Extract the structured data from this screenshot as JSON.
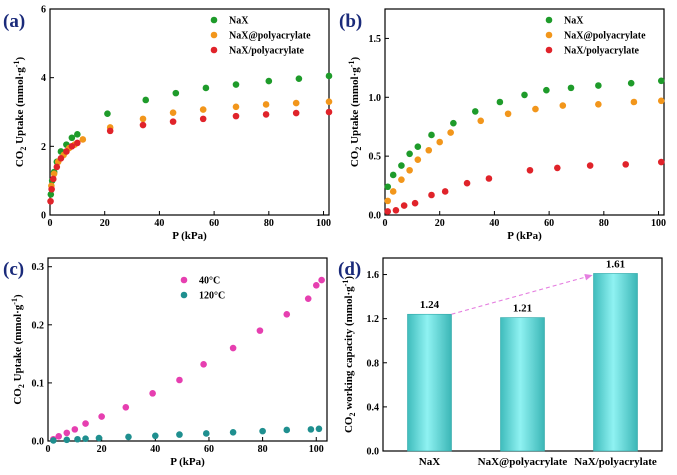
{
  "colors": {
    "green": "#1e9b2a",
    "orange": "#f2961b",
    "red": "#e0232a",
    "magenta": "#e63fb0",
    "teal": "#1f8f8f",
    "bar": "#62dcdc",
    "arrow": "#e57fe0"
  },
  "chart_data": [
    {
      "type": "scatter",
      "panel_label": "(a)",
      "xlabel": "P (kPa)",
      "ylabel_pre": "CO",
      "ylabel_sub": "2",
      "ylabel_post": " Uptake (mmol·g",
      "ylabel_sup": "-1",
      "ylabel_end": ")",
      "xlim": [
        0,
        102
      ],
      "ylim": [
        0,
        6
      ],
      "xticks": [
        0,
        20,
        40,
        60,
        80,
        100
      ],
      "yticks": [
        0,
        2,
        4,
        6
      ],
      "legend_position": "top-right",
      "series": [
        {
          "name": "NaX",
          "color": "#1e9b2a",
          "points": [
            [
              0.3,
              0.6
            ],
            [
              0.8,
              1.0
            ],
            [
              1.5,
              1.25
            ],
            [
              2.5,
              1.55
            ],
            [
              4,
              1.85
            ],
            [
              6,
              2.05
            ],
            [
              8,
              2.25
            ],
            [
              10,
              2.35
            ],
            [
              21,
              2.95
            ],
            [
              35,
              3.35
            ],
            [
              46,
              3.55
            ],
            [
              57,
              3.7
            ],
            [
              68,
              3.8
            ],
            [
              80,
              3.9
            ],
            [
              91,
              3.97
            ],
            [
              102,
              4.05
            ]
          ]
        },
        {
          "name": "NaX@polyacrylate",
          "color": "#f2961b",
          "points": [
            [
              0.5,
              0.85
            ],
            [
              1.5,
              1.2
            ],
            [
              3,
              1.55
            ],
            [
              5,
              1.75
            ],
            [
              7,
              1.95
            ],
            [
              9,
              2.05
            ],
            [
              12,
              2.2
            ],
            [
              22,
              2.55
            ],
            [
              34,
              2.8
            ],
            [
              45,
              2.98
            ],
            [
              56,
              3.07
            ],
            [
              68,
              3.15
            ],
            [
              79,
              3.22
            ],
            [
              90,
              3.26
            ],
            [
              102,
              3.3
            ]
          ]
        },
        {
          "name": "NaX/polyacrylate",
          "color": "#e0232a",
          "points": [
            [
              0.2,
              0.4
            ],
            [
              0.6,
              0.75
            ],
            [
              1.2,
              1.05
            ],
            [
              2.5,
              1.4
            ],
            [
              4,
              1.65
            ],
            [
              6,
              1.85
            ],
            [
              8,
              2.0
            ],
            [
              10,
              2.1
            ],
            [
              22,
              2.45
            ],
            [
              34,
              2.62
            ],
            [
              45,
              2.72
            ],
            [
              56,
              2.8
            ],
            [
              68,
              2.88
            ],
            [
              79,
              2.93
            ],
            [
              90,
              2.97
            ],
            [
              102,
              3.0
            ]
          ]
        }
      ]
    },
    {
      "type": "scatter",
      "panel_label": "(b)",
      "xlabel": "P (kPa)",
      "ylabel_pre": "CO",
      "ylabel_sub": "2",
      "ylabel_post": " Uptake (mmol·g",
      "ylabel_sup": "-1",
      "ylabel_end": ")",
      "xlim": [
        0,
        102
      ],
      "ylim": [
        0,
        1.75
      ],
      "xticks": [
        0,
        20,
        40,
        60,
        80,
        100
      ],
      "yticks": [
        0.0,
        0.5,
        1.0,
        1.5
      ],
      "legend_position": "top-right",
      "series": [
        {
          "name": "NaX",
          "color": "#1e9b2a",
          "points": [
            [
              1,
              0.24
            ],
            [
              3,
              0.34
            ],
            [
              6,
              0.42
            ],
            [
              9,
              0.52
            ],
            [
              12,
              0.58
            ],
            [
              17,
              0.68
            ],
            [
              25,
              0.78
            ],
            [
              33,
              0.88
            ],
            [
              42,
              0.96
            ],
            [
              51,
              1.02
            ],
            [
              59,
              1.06
            ],
            [
              68,
              1.08
            ],
            [
              78,
              1.1
            ],
            [
              90,
              1.12
            ],
            [
              101,
              1.14
            ]
          ]
        },
        {
          "name": "NaX@polyacrylate",
          "color": "#f2961b",
          "points": [
            [
              1,
              0.12
            ],
            [
              3,
              0.2
            ],
            [
              6,
              0.3
            ],
            [
              9,
              0.38
            ],
            [
              12,
              0.47
            ],
            [
              16,
              0.55
            ],
            [
              20,
              0.62
            ],
            [
              24,
              0.7
            ],
            [
              35,
              0.8
            ],
            [
              45,
              0.86
            ],
            [
              55,
              0.9
            ],
            [
              65,
              0.93
            ],
            [
              78,
              0.94
            ],
            [
              91,
              0.96
            ],
            [
              101,
              0.97
            ]
          ]
        },
        {
          "name": "NaX/polyacrylate",
          "color": "#e0232a",
          "points": [
            [
              1,
              0.03
            ],
            [
              4,
              0.04
            ],
            [
              7,
              0.08
            ],
            [
              11,
              0.1
            ],
            [
              17,
              0.17
            ],
            [
              22,
              0.2
            ],
            [
              30,
              0.27
            ],
            [
              38,
              0.31
            ],
            [
              53,
              0.38
            ],
            [
              63,
              0.4
            ],
            [
              75,
              0.42
            ],
            [
              88,
              0.43
            ],
            [
              101,
              0.45
            ]
          ]
        }
      ]
    },
    {
      "type": "scatter",
      "panel_label": "(c)",
      "xlabel": "P (kPa)",
      "ylabel_pre": "CO",
      "ylabel_sub": "2",
      "ylabel_post": " Uptake (mmol·g",
      "ylabel_sup": "-1",
      "ylabel_end": ")",
      "xlim": [
        0,
        104
      ],
      "ylim": [
        0,
        0.315
      ],
      "xticks": [
        0,
        20,
        40,
        60,
        80,
        100
      ],
      "yticks": [
        0.0,
        0.1,
        0.2,
        0.3
      ],
      "legend_position": "top-center",
      "series": [
        {
          "name": "40°C",
          "color": "#e63fb0",
          "points": [
            [
              2,
              0.003
            ],
            [
              4,
              0.008
            ],
            [
              7,
              0.014
            ],
            [
              10,
              0.02
            ],
            [
              14,
              0.03
            ],
            [
              20,
              0.042
            ],
            [
              29,
              0.058
            ],
            [
              39,
              0.082
            ],
            [
              49,
              0.105
            ],
            [
              58,
              0.132
            ],
            [
              69,
              0.16
            ],
            [
              79,
              0.19
            ],
            [
              89,
              0.218
            ],
            [
              97,
              0.245
            ],
            [
              100,
              0.268
            ],
            [
              102,
              0.277
            ]
          ]
        },
        {
          "name": "120°C",
          "color": "#1f8f8f",
          "points": [
            [
              2,
              0.001
            ],
            [
              7,
              0.002
            ],
            [
              11,
              0.003
            ],
            [
              14,
              0.004
            ],
            [
              19,
              0.005
            ],
            [
              30,
              0.007
            ],
            [
              40,
              0.009
            ],
            [
              49,
              0.011
            ],
            [
              59,
              0.013
            ],
            [
              69,
              0.015
            ],
            [
              80,
              0.017
            ],
            [
              89,
              0.019
            ],
            [
              98,
              0.02
            ],
            [
              101,
              0.021
            ]
          ]
        }
      ]
    },
    {
      "type": "bar",
      "panel_label": "(d)",
      "ylabel_pre": "CO",
      "ylabel_sub": "2",
      "ylabel_post": " working capacity (mmol·g",
      "ylabel_sup": "-1",
      "ylabel_end": ")",
      "categories": [
        "NaX",
        "NaX@polyacrylate",
        "NaX/polyacrylate"
      ],
      "values": [
        1.24,
        1.21,
        1.61
      ],
      "value_labels": [
        "1.24",
        "1.21",
        "1.61"
      ],
      "ylim": [
        0,
        1.75
      ],
      "yticks": [
        0.0,
        0.4,
        0.8,
        1.2,
        1.6
      ]
    }
  ]
}
